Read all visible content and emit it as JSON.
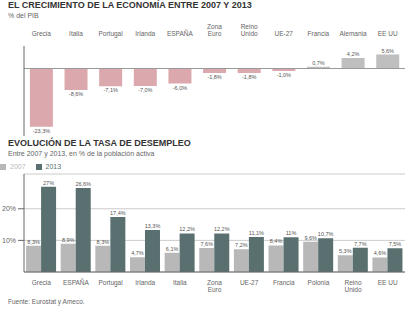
{
  "chart_data": [
    {
      "type": "bar",
      "title": "EL CRECIMIENTO DE LA ECONOMÍA ENTRE 2007 Y 2013",
      "subtitle": "% del PIB",
      "categories": [
        "Grecia",
        "Italia",
        "Portugal",
        "Irlanda",
        "ESPAÑA",
        "Zona\nEuro",
        "Reino\nUnido",
        "UE-27",
        "Francia",
        "Alemania",
        "EE UU"
      ],
      "values": [
        -23.3,
        -8.6,
        -7.1,
        -7.0,
        -6.0,
        -1.8,
        -1.8,
        -1.0,
        0.7,
        4.2,
        5.6
      ],
      "value_labels": [
        "-23,3%",
        "-8,6%",
        "-7,1%",
        "-7,0%",
        "-6,0%",
        "-1,8%",
        "-1,8%",
        "-1,0%",
        "0,7%",
        "4,2%",
        "5,6%"
      ],
      "colors": [
        "#dba8ad",
        "#dba8ad",
        "#dba8ad",
        "#dba8ad",
        "#dba8ad",
        "#dba8ad",
        "#dba8ad",
        "#dba8ad",
        "#bfbfbf",
        "#bfbfbf",
        "#bfbfbf"
      ],
      "ylim": [
        -27,
        9
      ],
      "data_labels": true,
      "tick_labels": "x",
      "grid": false
    },
    {
      "type": "bar",
      "title": "EVOLUCIÓN DE LA TASA DE DESEMPLEO",
      "subtitle": "Entre 2007 y 2013, en % de la población activa",
      "categories": [
        "Grecia",
        "ESPAÑA",
        "Portugal",
        "Irlanda",
        "Italia",
        "Zona\nEuro",
        "UE-27",
        "Francia",
        "Polonia",
        "Reino\nUnido",
        "EE UU"
      ],
      "series": [
        {
          "name": "2007",
          "color": "#b8b8b8",
          "values": [
            8.3,
            8.9,
            8.3,
            4.7,
            6.1,
            7.6,
            7.2,
            8.4,
            9.6,
            5.3,
            4.6
          ],
          "value_labels": [
            "8,3%",
            "8,9%",
            "8,3%",
            "4,7%",
            "6,1%",
            "7,6%",
            "7,2%",
            "8,4%",
            "9,6%",
            "5,3%",
            "4,6%"
          ]
        },
        {
          "name": "2013",
          "color": "#5a7070",
          "values": [
            27.0,
            26.6,
            17.4,
            13.3,
            12.2,
            12.2,
            11.1,
            11.0,
            10.7,
            7.7,
            7.5
          ],
          "value_labels": [
            "27%",
            "26,6%",
            "17,4%",
            "13,3%",
            "12,2%",
            "12,2%",
            "11,1%",
            "11%",
            "10,7%",
            "7,7%",
            "7,5%"
          ]
        }
      ],
      "ylim": [
        0,
        31
      ],
      "yticks": [
        {
          "value": 10,
          "label": "10%"
        },
        {
          "value": 20,
          "label": "20%"
        }
      ],
      "grid": true,
      "legend": "upper left",
      "data_labels": true,
      "annotations": [
        "Fuente: Eurostat y Ameco."
      ]
    }
  ]
}
